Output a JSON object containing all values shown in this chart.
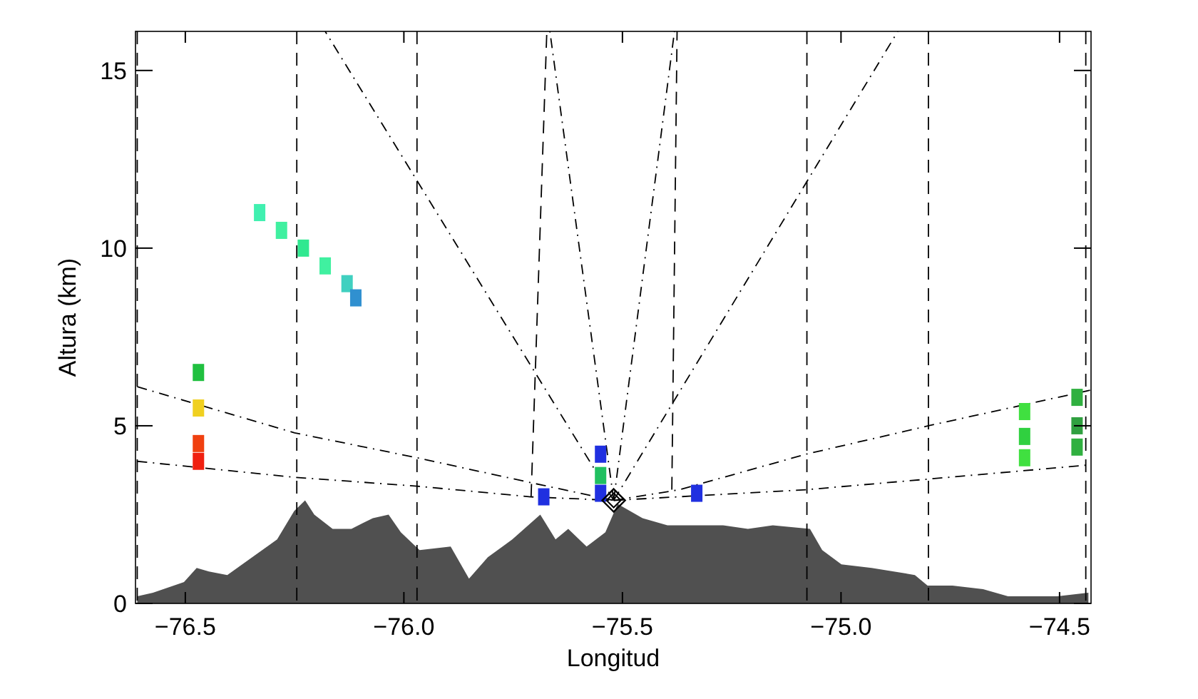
{
  "chart_data": {
    "type": "area",
    "xlabel": "Longitud",
    "ylabel": "Altura (km)",
    "xlim": [
      -76.614,
      -74.428
    ],
    "ylim": [
      0,
      16.1
    ],
    "xticks": [
      {
        "value": -76.5,
        "label": "−76.5"
      },
      {
        "value": -76.0,
        "label": "−76.0"
      },
      {
        "value": -75.5,
        "label": "−75.5"
      },
      {
        "value": -75.0,
        "label": "−75.0"
      },
      {
        "value": -74.5,
        "label": "−74.5"
      }
    ],
    "yticks": [
      0,
      5,
      10,
      15
    ],
    "grid": false,
    "ref_lines": [
      {
        "axis": "x",
        "value": -76.61,
        "line_style": "dashed",
        "color": "#000000"
      },
      {
        "axis": "x",
        "value": -76.245,
        "line_style": "dashed",
        "color": "#000000"
      },
      {
        "axis": "x",
        "value": -75.97,
        "line_style": "dashed",
        "color": "#000000"
      },
      {
        "axis": "x",
        "value": -75.078,
        "line_style": "dashed",
        "color": "#000000"
      },
      {
        "axis": "x",
        "value": -74.8,
        "line_style": "dashed",
        "color": "#000000"
      },
      {
        "axis": "x",
        "value": -74.44,
        "line_style": "dashed",
        "color": "#000000"
      }
    ],
    "series": [
      {
        "color": "#505050",
        "x": [
          -76.61,
          -76.574,
          -76.503,
          -76.474,
          -76.446,
          -76.404,
          -76.347,
          -76.29,
          -76.251,
          -76.226,
          -76.205,
          -76.163,
          -76.12,
          -76.071,
          -76.035,
          -76.007,
          -75.964,
          -75.893,
          -75.851,
          -75.808,
          -75.752,
          -75.688,
          -75.653,
          -75.624,
          -75.582,
          -75.539,
          -75.511,
          -75.454,
          -75.397,
          -75.27,
          -75.213,
          -75.156,
          -75.071,
          -75.043,
          -74.999,
          -74.93,
          -74.831,
          -74.802,
          -74.745,
          -74.675,
          -74.618,
          -74.505,
          -74.434
        ],
        "values": [
          0.2,
          0.3,
          0.6,
          1.0,
          0.9,
          0.8,
          1.3,
          1.8,
          2.6,
          2.9,
          2.5,
          2.1,
          2.1,
          2.4,
          2.5,
          2.0,
          1.5,
          1.6,
          0.7,
          1.3,
          1.8,
          2.5,
          1.8,
          2.1,
          1.6,
          2.0,
          2.8,
          2.4,
          2.2,
          2.2,
          2.1,
          2.2,
          2.1,
          1.5,
          1.1,
          1.0,
          0.8,
          0.5,
          0.5,
          0.4,
          0.2,
          0.2,
          0.3
        ]
      },
      {
        "type": "line",
        "color": "#000000",
        "line_style": "dashdot",
        "x": [
          -76.61,
          -76.25,
          -75.97,
          -75.71,
          -75.52
        ],
        "values": [
          4.0,
          3.55,
          3.3,
          3.0,
          2.9
        ]
      },
      {
        "type": "line",
        "color": "#000000",
        "line_style": "dashdot",
        "x": [
          -76.61,
          -76.25,
          -75.97,
          -75.71,
          -75.52
        ],
        "values": [
          6.1,
          4.8,
          4.1,
          3.4,
          2.9
        ]
      },
      {
        "type": "line",
        "color": "#000000",
        "line_style": "dashdot",
        "x": [
          -75.52,
          -75.37,
          -75.08,
          -74.8,
          -74.43
        ],
        "values": [
          2.9,
          3.2,
          4.2,
          5.0,
          6.0
        ]
      },
      {
        "type": "line",
        "color": "#000000",
        "line_style": "dashdot",
        "x": [
          -75.52,
          -75.08,
          -74.8,
          -74.43
        ],
        "values": [
          2.9,
          3.2,
          3.5,
          3.9
        ]
      },
      {
        "type": "line",
        "color": "#000000",
        "line_style": "dashdot",
        "x": [
          -75.52,
          -76.18
        ],
        "values": [
          2.9,
          16.1
        ]
      },
      {
        "type": "line",
        "color": "#000000",
        "line_style": "dashdot",
        "x": [
          -75.52,
          -74.87
        ],
        "values": [
          2.9,
          16.1
        ]
      },
      {
        "type": "line",
        "color": "#000000",
        "line_style": "dashdot",
        "x": [
          -75.52,
          -75.666
        ],
        "values": [
          2.9,
          16.1
        ]
      },
      {
        "type": "line",
        "color": "#000000",
        "line_style": "dashdot",
        "x": [
          -75.52,
          -75.381
        ],
        "values": [
          2.9,
          16.1
        ]
      },
      {
        "type": "line",
        "color": "#000000",
        "line_style": "dashed",
        "x": [
          -75.709,
          -75.673
        ],
        "values": [
          3.0,
          16.1
        ]
      },
      {
        "type": "line",
        "color": "#000000",
        "line_style": "dashed",
        "x": [
          -75.387,
          -75.375
        ],
        "values": [
          3.2,
          16.1
        ]
      },
      {
        "type": "scatter",
        "marker": "square",
        "x": [
          -76.33,
          -76.28,
          -76.23,
          -76.18,
          -76.13,
          -76.11
        ],
        "values": [
          11.0,
          10.5,
          10.0,
          9.5,
          9.0,
          8.6
        ],
        "colors": [
          "#40f0b0",
          "#40f0a0",
          "#30e890",
          "#40f0a0",
          "#40d0c0",
          "#3090d0"
        ]
      },
      {
        "type": "scatter",
        "marker": "square",
        "x": [
          -76.47,
          -76.47,
          -76.47,
          -76.47
        ],
        "values": [
          6.5,
          5.5,
          4.5,
          4.0
        ],
        "colors": [
          "#20c040",
          "#f0d020",
          "#f04010",
          "#f02010"
        ]
      },
      {
        "type": "scatter",
        "marker": "square",
        "x": [
          -75.55,
          -75.55,
          -75.55,
          -75.68,
          -75.33
        ],
        "values": [
          4.2,
          3.6,
          3.1,
          3.0,
          3.1
        ],
        "colors": [
          "#2030e0",
          "#20c060",
          "#2030e0",
          "#2030e0",
          "#2030e0"
        ]
      },
      {
        "type": "scatter",
        "marker": "square",
        "x": [
          -74.58,
          -74.58,
          -74.58,
          -74.46,
          -74.46,
          -74.46
        ],
        "values": [
          5.4,
          4.7,
          4.1,
          5.8,
          5.0,
          4.4
        ],
        "colors": [
          "#40e040",
          "#30d040",
          "#40e040",
          "#30b040",
          "#30a040",
          "#30b040"
        ]
      },
      {
        "type": "scatter",
        "marker": "diamond",
        "color": "#000000",
        "x": [
          -75.52
        ],
        "values": [
          2.9
        ]
      }
    ]
  }
}
